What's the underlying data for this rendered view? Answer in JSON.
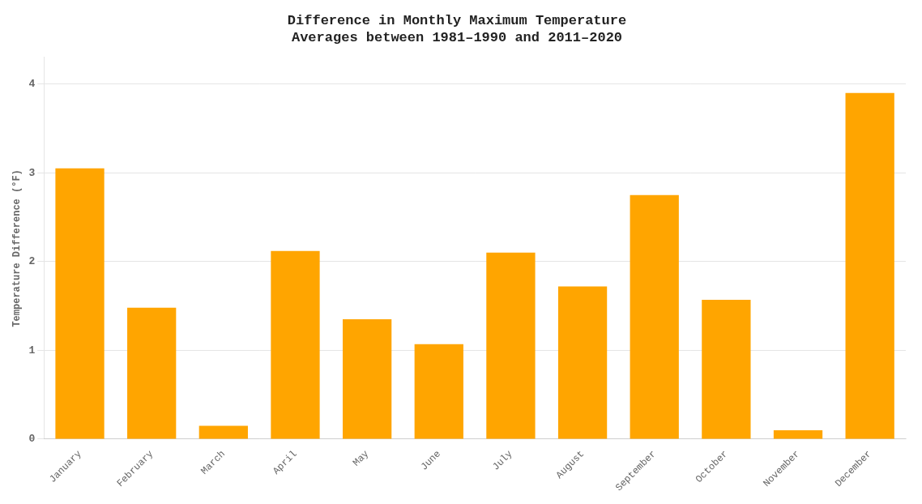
{
  "chart_data": {
    "type": "bar",
    "title": "Difference in Monthly Maximum Temperature\nAverages between 1981–1990 and 2011–2020",
    "ylabel": "Temperature Difference (°F)",
    "categories": [
      "January",
      "February",
      "March",
      "April",
      "May",
      "June",
      "July",
      "August",
      "September",
      "October",
      "November",
      "December"
    ],
    "values": [
      3.05,
      1.48,
      0.15,
      2.12,
      1.35,
      1.07,
      2.1,
      1.72,
      2.75,
      1.57,
      0.1,
      3.9
    ],
    "color": "#FFA500",
    "ylim": [
      0,
      4.3
    ],
    "yticks": [
      0,
      1,
      2,
      3,
      4
    ],
    "grid": true
  }
}
